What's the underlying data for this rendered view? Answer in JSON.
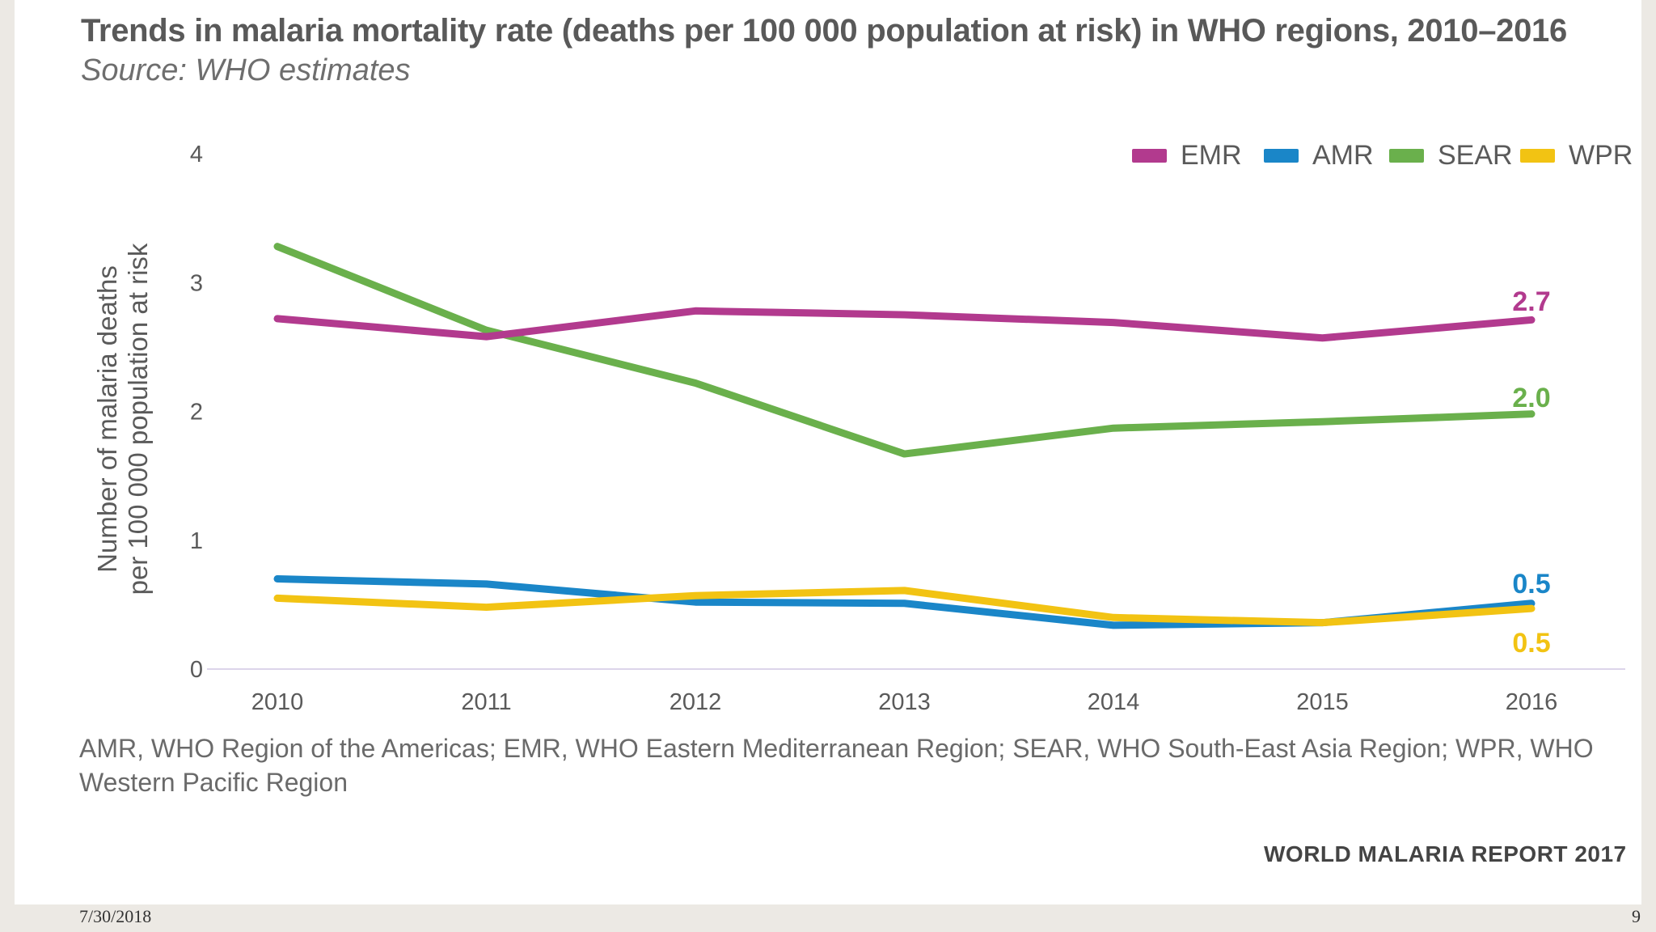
{
  "chart_data": {
    "type": "line",
    "title": "Trends in malaria mortality rate (deaths per 100 000 population at risk) in WHO regions, 2010–2016",
    "subtitle": "Source: WHO estimates",
    "xlabel": "",
    "ylabel_lines": [
      "Number of malaria deaths",
      "per 100 000 population at risk"
    ],
    "x": [
      "2010",
      "2011",
      "2012",
      "2013",
      "2014",
      "2015",
      "2016"
    ],
    "ylim": [
      0,
      4
    ],
    "yticks": [
      "0",
      "1",
      "2",
      "3",
      "4"
    ],
    "grid": false,
    "legend_position": "top-right",
    "series": [
      {
        "name": "EMR",
        "color": "#b23a8e",
        "values": [
          2.72,
          2.58,
          2.78,
          2.75,
          2.69,
          2.57,
          2.71
        ],
        "end_label": "2.7"
      },
      {
        "name": "AMR",
        "color": "#1a86c8",
        "values": [
          0.7,
          0.66,
          0.52,
          0.51,
          0.34,
          0.36,
          0.51
        ],
        "end_label": "0.5"
      },
      {
        "name": "SEAR",
        "color": "#6ab04c",
        "values": [
          3.28,
          2.63,
          2.22,
          1.67,
          1.87,
          1.92,
          1.98
        ],
        "end_label": "2.0"
      },
      {
        "name": "WPR",
        "color": "#f2c313",
        "values": [
          0.55,
          0.48,
          0.57,
          0.61,
          0.4,
          0.36,
          0.47
        ],
        "end_label": "0.5"
      }
    ],
    "footnote": "AMR, WHO Region of the Americas; EMR, WHO Eastern Mediterranean Region; SEAR, WHO South-East Asia Region; WPR, WHO Western Pacific Region",
    "source_brand": "WORLD MALARIA REPORT 2017"
  },
  "slide": {
    "date": "7/30/2018",
    "page_number": "9"
  }
}
